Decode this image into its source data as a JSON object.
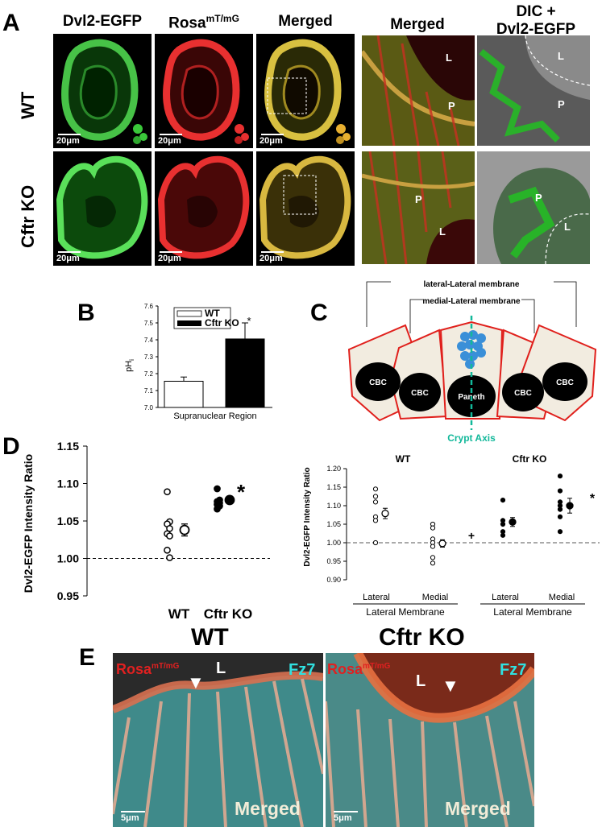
{
  "panel_a": {
    "label": "A",
    "col_headers": {
      "dvl2": "Dvl2-EGFP",
      "rosa_base": "Rosa",
      "rosa_sup": "mT/mG",
      "merged1": "Merged",
      "merged2": "Merged",
      "dic_line1": "DIC +",
      "dic_line2": "Dvl2-EGFP"
    },
    "rows": [
      "WT",
      "Cftr KO"
    ],
    "scale_bar": "20μm",
    "markers": {
      "lumen": "L",
      "paneth": "P"
    }
  },
  "panel_b": {
    "label": "B",
    "legend": [
      "WT",
      "Cftr KO"
    ],
    "star": "*",
    "chart_data": {
      "type": "bar",
      "categories": [
        "WT",
        "Cftr KO"
      ],
      "values": [
        7.155,
        7.405
      ],
      "errors": [
        0.025,
        0.095
      ],
      "xlabel": "Supranuclear Region",
      "ylabel_base": "pH",
      "ylabel_sub": "i",
      "ylim": [
        7.0,
        7.6
      ],
      "ticks": [
        "7.0",
        "7.1",
        "7.2",
        "7.3",
        "7.4",
        "7.5",
        "7.6"
      ],
      "colors": [
        "#ffffff",
        "#000000"
      ]
    }
  },
  "panel_c": {
    "label": "C",
    "lateral_lateral": "lateral-Lateral membrane",
    "medial_lateral": "medial-Lateral membrane",
    "cells": [
      "CBC",
      "CBC",
      "Paneth",
      "CBC",
      "CBC"
    ],
    "axis_label": "Crypt Axis",
    "colors": {
      "membrane": "#e0201c",
      "cell_fill": "#f2ece0",
      "nucleus": "#000000",
      "cluster": "#3a8fd8",
      "axis": "#12b89a"
    }
  },
  "panel_d": {
    "label": "D",
    "left_chart": {
      "type": "scatter",
      "ylabel": "Dvl2-EGFP Intensity Ratio",
      "ticks": [
        "0.95",
        "1.00",
        "1.05",
        "1.10",
        "1.15"
      ],
      "ylim": [
        0.95,
        1.15
      ],
      "categories": [
        "WT",
        "Cftr KO"
      ],
      "points": {
        "WT": [
          1.089,
          1.049,
          1.046,
          1.04,
          1.033,
          1.03,
          1.011,
          1.001
        ],
        "Cftr KO": [
          1.093,
          1.078,
          1.076,
          1.074,
          1.072,
          1.07,
          1.066
        ]
      },
      "means": [
        1.038,
        1.078
      ],
      "errors": [
        0.008,
        0.004
      ],
      "star": "*",
      "reference_line": 1.0
    },
    "right_chart": {
      "type": "scatter",
      "ylabel": "Dvl2-EGFP Intensity Ratio",
      "ticks": [
        "0.90",
        "0.95",
        "1.00",
        "1.05",
        "1.10",
        "1.15",
        "1.20"
      ],
      "ylim": [
        0.9,
        1.2
      ],
      "group_titles": [
        "WT",
        "Cftr KO"
      ],
      "tick_labels": [
        "Lateral",
        "Medial",
        "Lateral",
        "Medial"
      ],
      "group_labels": [
        "Lateral Membrane",
        "Lateral Membrane"
      ],
      "series": [
        {
          "points": [
            1.145,
            1.125,
            1.11,
            1.07,
            1.06,
            1.0
          ],
          "mean": 1.079,
          "error": 0.014,
          "filled": false
        },
        {
          "points": [
            1.05,
            1.04,
            1.01,
            1.0,
            0.99,
            0.96,
            0.945
          ],
          "mean": 0.998,
          "error": 0.01,
          "filled": false
        },
        {
          "points": [
            1.115,
            1.06,
            1.05,
            1.03,
            1.02
          ],
          "mean": 1.056,
          "error": 0.012,
          "filled": true
        },
        {
          "points": [
            1.18,
            1.14,
            1.11,
            1.1,
            1.09,
            1.07,
            1.03
          ],
          "mean": 1.1,
          "error": 0.02,
          "filled": true
        }
      ],
      "marks": [
        "+",
        "*"
      ],
      "reference_line": 1.0
    }
  },
  "panel_e": {
    "label": "E",
    "titles": [
      "WT",
      "Cftr KO"
    ],
    "rosa_base": "Rosa",
    "rosa_sup": "mT/mG",
    "fz7": "Fz7",
    "lumen": "L",
    "merged": "Merged",
    "scale_bar": "5μm"
  }
}
